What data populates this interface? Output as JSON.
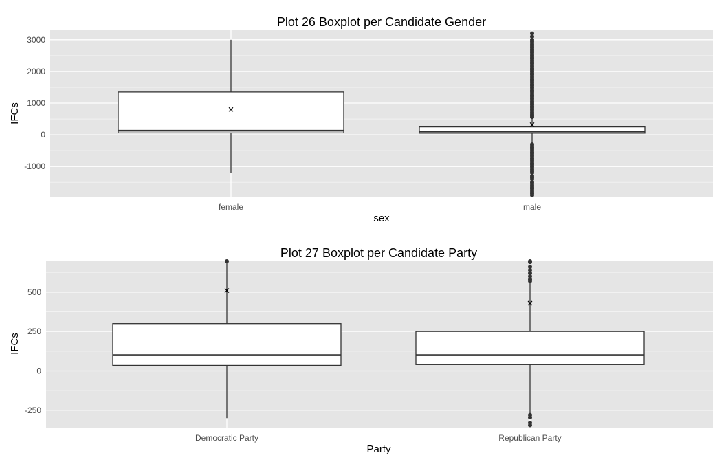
{
  "chart_data": [
    {
      "type": "boxplot",
      "title": "Plot 26 Boxplot per Candidate Gender",
      "xlabel": "sex",
      "ylabel": "IFCs",
      "ylim": [
        -1950,
        3300
      ],
      "yticks": [
        3000,
        2000,
        1000,
        0,
        -1000
      ],
      "ytick_labels": [
        "3000",
        "2000",
        "1000",
        "0",
        "-1000"
      ],
      "categories": [
        "female",
        "male"
      ],
      "boxes": [
        {
          "category": "female",
          "whisker_low": -1200,
          "q1": 60,
          "median": 130,
          "q3": 1350,
          "whisker_high": 3000,
          "mean": 800,
          "outliers": []
        },
        {
          "category": "male",
          "whisker_low": -280,
          "q1": 50,
          "median": 100,
          "q3": 250,
          "whisker_high": 500,
          "mean": 320,
          "outliers": [
            3200,
            3100,
            3000,
            2950,
            2900,
            2850,
            2800,
            2750,
            2700,
            2650,
            2600,
            2550,
            2500,
            2450,
            2400,
            2350,
            2300,
            2250,
            2200,
            2150,
            2100,
            2050,
            2000,
            1950,
            1900,
            1850,
            1800,
            1750,
            1700,
            1650,
            1600,
            1550,
            1500,
            1450,
            1400,
            1350,
            1300,
            1250,
            1200,
            1150,
            1100,
            1050,
            1000,
            950,
            900,
            850,
            800,
            750,
            700,
            650,
            600,
            560,
            -300,
            -350,
            -400,
            -450,
            -500,
            -550,
            -600,
            -650,
            -700,
            -750,
            -800,
            -850,
            -900,
            -950,
            -1000,
            -1050,
            -1100,
            -1150,
            -1200,
            -1300,
            -1350,
            -1400,
            -1500,
            -1550,
            -1600,
            -1650,
            -1700,
            -1750,
            -1800,
            -1850,
            -1900
          ]
        }
      ],
      "grid": true
    },
    {
      "type": "boxplot",
      "title": "Plot 27 Boxplot per Candidate Party",
      "xlabel": "Party",
      "ylabel": "IFCs",
      "ylim": [
        -360,
        700
      ],
      "yticks": [
        500,
        250,
        0,
        -250
      ],
      "ytick_labels": [
        "500",
        "250",
        "0",
        "-250"
      ],
      "categories": [
        "Democratic Party",
        "Republican Party"
      ],
      "boxes": [
        {
          "category": "Democratic Party",
          "whisker_low": -300,
          "q1": 35,
          "median": 100,
          "q3": 300,
          "whisker_high": 700,
          "mean": 510,
          "outliers": [
            700
          ]
        },
        {
          "category": "Republican Party",
          "whisker_low": -270,
          "q1": 40,
          "median": 100,
          "q3": 250,
          "whisker_high": 560,
          "mean": 430,
          "outliers": [
            700,
            690,
            660,
            640,
            620,
            600,
            580,
            570,
            -280,
            -295,
            -330,
            -345
          ]
        }
      ],
      "grid": true
    }
  ]
}
